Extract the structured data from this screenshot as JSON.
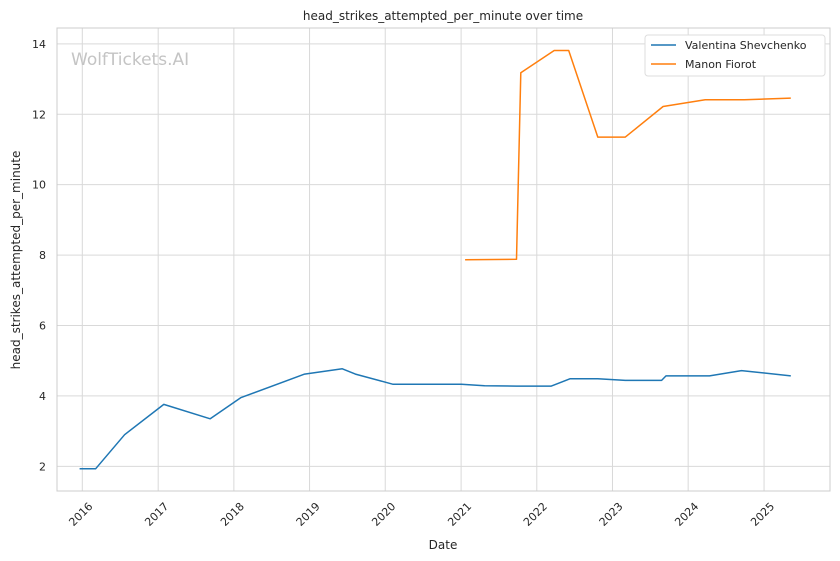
{
  "chart_data": {
    "type": "line",
    "title": "head_strikes_attempted_per_minute over time",
    "xlabel": "Date",
    "ylabel": "head_strikes_attempted_per_minute",
    "watermark": "WolfTickets.AI",
    "xlim": [
      "2015-09-01",
      "2025-11-15"
    ],
    "ylim": [
      1.3,
      14.45
    ],
    "x_ticks": [
      "2016",
      "2017",
      "2018",
      "2019",
      "2020",
      "2021",
      "2022",
      "2023",
      "2024",
      "2025"
    ],
    "y_ticks": [
      2,
      4,
      6,
      8,
      10,
      12,
      14
    ],
    "grid": true,
    "legend_position": "top-right",
    "series": [
      {
        "name": "Valentina Shevchenko",
        "color": "#1f77b4",
        "points": [
          [
            "2015-12-19",
            1.93
          ],
          [
            "2016-03-05",
            1.93
          ],
          [
            "2016-07-23",
            2.9
          ],
          [
            "2017-01-28",
            3.76
          ],
          [
            "2017-09-09",
            3.35
          ],
          [
            "2018-02-03",
            3.95
          ],
          [
            "2018-12-08",
            4.62
          ],
          [
            "2019-06-08",
            4.77
          ],
          [
            "2019-08-10",
            4.62
          ],
          [
            "2020-02-08",
            4.33
          ],
          [
            "2021-01-02",
            4.33
          ],
          [
            "2021-04-24",
            4.29
          ],
          [
            "2021-09-25",
            4.28
          ],
          [
            "2022-03-12",
            4.28
          ],
          [
            "2022-06-11",
            4.49
          ],
          [
            "2022-10-22",
            4.49
          ],
          [
            "2023-03-04",
            4.44
          ],
          [
            "2023-08-26",
            4.44
          ],
          [
            "2023-09-16",
            4.57
          ],
          [
            "2024-04-13",
            4.57
          ],
          [
            "2024-09-14",
            4.72
          ],
          [
            "2025-05-10",
            4.57
          ]
        ]
      },
      {
        "name": "Manon Fiorot",
        "color": "#ff7f0e",
        "points": [
          [
            "2021-01-20",
            7.87
          ],
          [
            "2021-09-25",
            7.88
          ],
          [
            "2021-10-16",
            13.18
          ],
          [
            "2022-03-26",
            13.81
          ],
          [
            "2022-06-04",
            13.81
          ],
          [
            "2022-10-22",
            11.35
          ],
          [
            "2023-03-04",
            11.35
          ],
          [
            "2023-09-02",
            12.22
          ],
          [
            "2024-03-23",
            12.41
          ],
          [
            "2024-09-28",
            12.41
          ],
          [
            "2025-05-10",
            12.46
          ]
        ]
      }
    ]
  }
}
